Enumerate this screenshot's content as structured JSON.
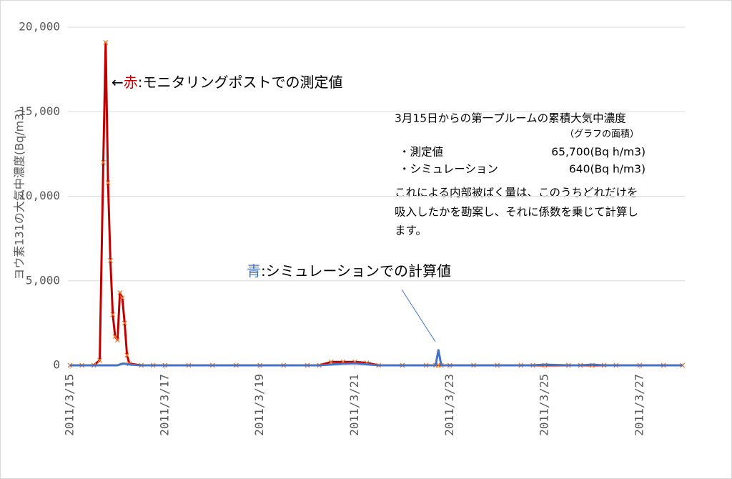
{
  "chart_data": {
    "type": "line",
    "y_label": "ヨウ素131の大気中濃度(Bq/m3)",
    "x": [
      0,
      0.25,
      0.5,
      0.625,
      0.7,
      0.75,
      0.8,
      0.85,
      0.9,
      0.95,
      1.0,
      1.05,
      1.1,
      1.15,
      1.2,
      1.25,
      1.5,
      1.75,
      2,
      2.5,
      3,
      3.5,
      4,
      4.5,
      5,
      5.25,
      5.5,
      5.75,
      6,
      6.25,
      6.5,
      7,
      7.5,
      7.7,
      7.76,
      7.82,
      8,
      8.5,
      9,
      9.5,
      9.75,
      10,
      10.5,
      10.75,
      11,
      11.25,
      11.5,
      12,
      12.5,
      12.9
    ],
    "xlim": [
      0,
      12.95
    ],
    "xticks": [
      {
        "value": 0,
        "label": "2011/3/15"
      },
      {
        "value": 2,
        "label": "2011/3/17"
      },
      {
        "value": 4,
        "label": "2011/3/19"
      },
      {
        "value": 6,
        "label": "2011/3/21"
      },
      {
        "value": 8,
        "label": "2011/3/23"
      },
      {
        "value": 10,
        "label": "2011/3/25"
      },
      {
        "value": 12,
        "label": "2011/3/27"
      }
    ],
    "ylim": [
      0,
      20000
    ],
    "yticks": [
      0,
      {
        "value": 5000,
        "label": "5,000"
      },
      {
        "value": 10000,
        "label": "10,000"
      },
      {
        "value": 15000,
        "label": "15,000"
      },
      {
        "value": 20000,
        "label": "20,000"
      }
    ],
    "grid": true,
    "series": [
      {
        "color": "#c00000",
        "marker": "x",
        "marker_color": "#ed7d31",
        "values": [
          0,
          0,
          0,
          300,
          12000,
          19100,
          10800,
          6200,
          3000,
          1700,
          1500,
          4300,
          4000,
          2500,
          600,
          100,
          0,
          0,
          0,
          0,
          0,
          0,
          0,
          0,
          0,
          0,
          200,
          200,
          200,
          150,
          0,
          0,
          0,
          0,
          0,
          0,
          0,
          0,
          0,
          0,
          0,
          0,
          0,
          0,
          0,
          0,
          0,
          0,
          0,
          0
        ]
      },
      {
        "color": "#4472c4",
        "values": [
          0,
          0,
          0,
          0,
          0,
          0,
          0,
          0,
          0,
          0,
          0,
          50,
          100,
          100,
          80,
          50,
          0,
          0,
          0,
          0,
          0,
          0,
          0,
          0,
          0,
          0,
          50,
          100,
          120,
          60,
          0,
          0,
          0,
          0,
          900,
          0,
          0,
          0,
          0,
          0,
          0,
          40,
          0,
          0,
          40,
          0,
          0,
          0,
          0,
          0
        ]
      }
    ],
    "annotations": [
      {
        "arrow": "←",
        "key": "赤",
        "text": ":モニタリングポストでの測定値"
      },
      {
        "key": "青",
        "text": ":シミュレーションでの計算値"
      }
    ],
    "note": {
      "title": "3月15日からの第一プルームの累積大気中濃度",
      "subtitle": "（グラフの面積）",
      "rows": [
        [
          "・測定値",
          "65,700(Bq h/m3)"
        ],
        [
          "・シミュレーション",
          "640(Bq h/m3)"
        ]
      ],
      "lines": [
        "これによる内部被ばく量は、このうちどれだけを",
        "吸入したかを勘案し、それに係数を乗じて計算し",
        "ます。"
      ]
    }
  }
}
